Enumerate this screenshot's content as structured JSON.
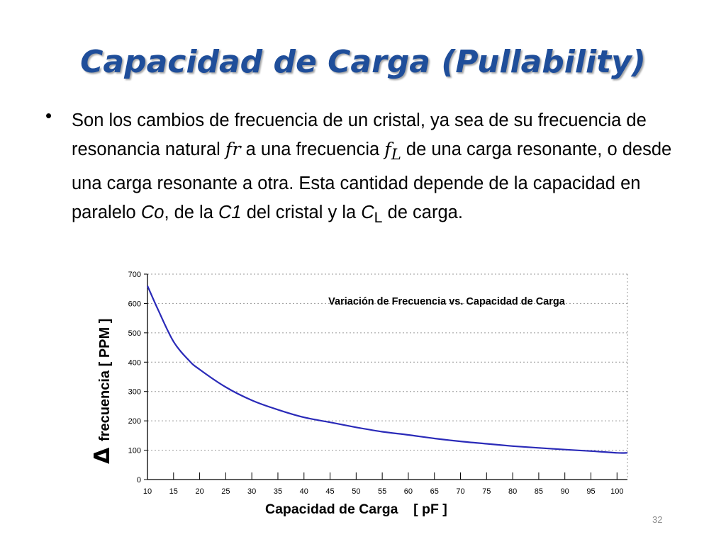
{
  "slide": {
    "title": "Capacidad de Carga (Pullability)",
    "bullet": "•",
    "text_1": "Son los cambios de frecuencia de un cristal, ya sea de su frecuencia de resonancia natural ",
    "var_fr": "fr",
    "text_2": " a una frecuencia ",
    "var_f": "f",
    "var_f_sub": "L",
    "text_3": " de una carga resonante, o desde una carga resonante a otra. Esta cantidad depende de la capacidad en paralelo ",
    "co": "Co",
    "text_4": ", de la ",
    "c1": "C1",
    "text_5": " del cristal y la ",
    "cl": "C",
    "cl_sub": "L",
    "text_6": " de carga.",
    "page_number": "32"
  },
  "colors": {
    "title": "#1f4e9a",
    "curve": "#2a2ab8",
    "axis": "#000000",
    "grid": "#9a9a9a"
  },
  "chart_data": {
    "type": "line",
    "title": "Variación de Frecuencia  vs. Capacidad de Carga",
    "xlabel": "Capacidad de Carga    [ pF ]",
    "ylabel_delta": "Δ",
    "ylabel": "frecuencia   [ PPM ]",
    "xlim": [
      10,
      102
    ],
    "ylim": [
      0,
      700
    ],
    "xticks": [
      10,
      15,
      20,
      25,
      30,
      35,
      40,
      45,
      50,
      55,
      60,
      65,
      70,
      75,
      80,
      85,
      90,
      95,
      100
    ],
    "yticks": [
      0,
      100,
      200,
      300,
      400,
      500,
      600,
      700
    ],
    "grid": "dashed horizontal",
    "series": [
      {
        "x": [
          10,
          12,
          15,
          18,
          20,
          25,
          30,
          35,
          40,
          45,
          50,
          55,
          60,
          65,
          70,
          75,
          80,
          85,
          90,
          95,
          100,
          102
        ],
        "values": [
          660,
          580,
          470,
          405,
          375,
          315,
          270,
          238,
          212,
          195,
          178,
          163,
          152,
          140,
          130,
          122,
          114,
          108,
          102,
          97,
          91,
          91
        ]
      }
    ]
  }
}
